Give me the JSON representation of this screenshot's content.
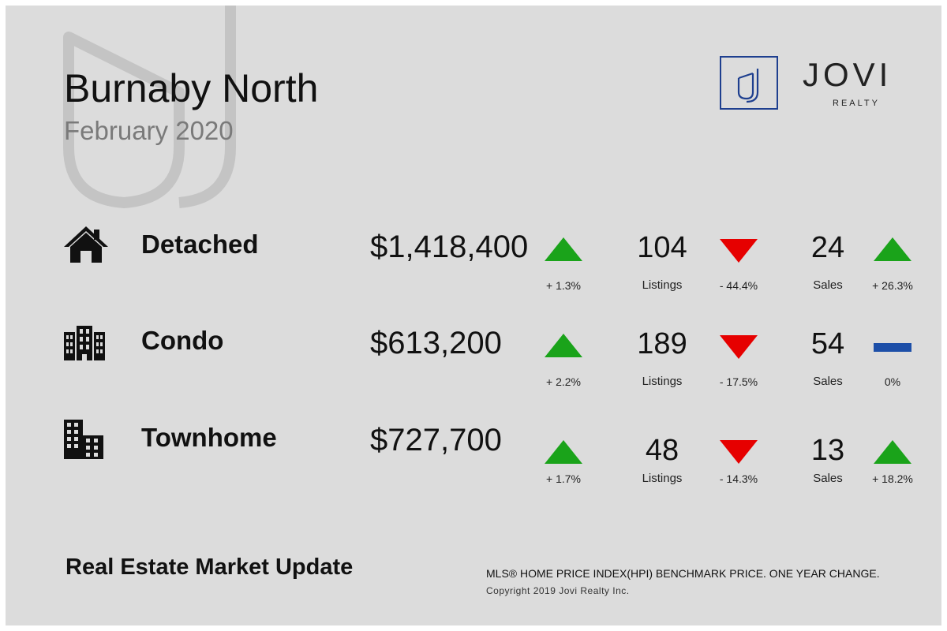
{
  "header": {
    "title": "Burnaby North",
    "subtitle": "February 2020"
  },
  "logo": {
    "mark": "J",
    "name": "JOVI",
    "sub": "REALTY"
  },
  "colors": {
    "up": "#1aa31a",
    "down": "#e60000",
    "flat": "#1d4fa8",
    "background": "#dcdcdc",
    "logo_blue": "#1e3f8f"
  },
  "rows": [
    {
      "type": "Detached",
      "icon": "house-icon",
      "price": "$1,418,400",
      "price_change": "+ 1.3%",
      "price_trend": "up",
      "listings": "104",
      "listings_label": "Listings",
      "listings_change": "- 44.4%",
      "listings_trend": "down",
      "sales": "24",
      "sales_label": "Sales",
      "sales_change": "+ 26.3%",
      "sales_trend": "up"
    },
    {
      "type": "Condo",
      "icon": "condo-building-icon",
      "price": "$613,200",
      "price_change": "+ 2.2%",
      "price_trend": "up",
      "listings": "189",
      "listings_label": "Listings",
      "listings_change": "- 17.5%",
      "listings_trend": "down",
      "sales": "54",
      "sales_label": "Sales",
      "sales_change": "0%",
      "sales_trend": "flat"
    },
    {
      "type": "Townhome",
      "icon": "townhome-building-icon",
      "price": "$727,700",
      "price_change": "+ 1.7%",
      "price_trend": "up",
      "listings": "48",
      "listings_label": "Listings",
      "listings_change": "- 14.3%",
      "listings_trend": "down",
      "sales": "13",
      "sales_label": "Sales",
      "sales_change": "+ 18.2%",
      "sales_trend": "up"
    }
  ],
  "footer": {
    "title": "Real Estate Market Update",
    "note": "MLS® HOME PRICE INDEX(HPI) BENCHMARK PRICE. ONE YEAR CHANGE.",
    "copyright": "Copyright 2019 Jovi Realty Inc."
  }
}
